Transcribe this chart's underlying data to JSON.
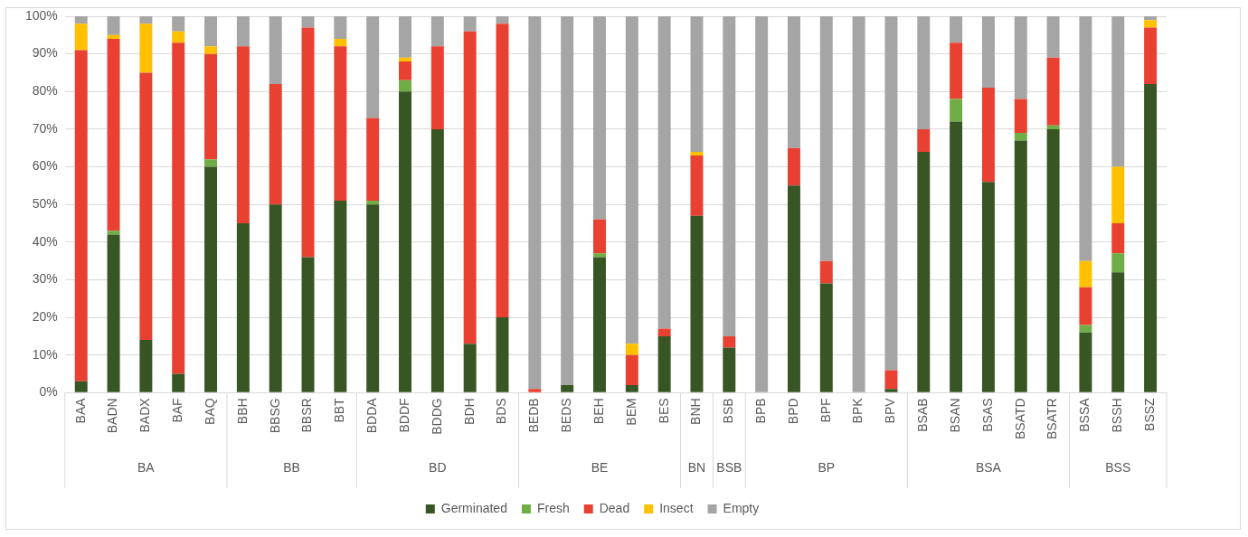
{
  "chart_data": {
    "type": "bar",
    "stacked": true,
    "categories": [
      "BAA",
      "BADN",
      "BADX",
      "BAF",
      "BAQ",
      "BBH",
      "BBSG",
      "BBSR",
      "BBT",
      "BDDA",
      "BDDF",
      "BDDG",
      "BDH",
      "BDS",
      "BEDB",
      "BEDS",
      "BEH",
      "BEM",
      "BES",
      "BNH",
      "BSB",
      "BPB",
      "BPD",
      "BPF",
      "BPK",
      "BPV",
      "BSAB",
      "BSAN",
      "BSAS",
      "BSATD",
      "BSATR",
      "BSSA",
      "BSSH",
      "BSSZ"
    ],
    "series": [
      {
        "name": "Germinated",
        "color": "#375623",
        "values": [
          3,
          42,
          14,
          5,
          60,
          45,
          50,
          36,
          51,
          50,
          80,
          70,
          13,
          20,
          0,
          2,
          36,
          2,
          15,
          47,
          12,
          0,
          55,
          29,
          0,
          1,
          64,
          72,
          56,
          67,
          70,
          16,
          32,
          82
        ]
      },
      {
        "name": "Fresh",
        "color": "#70ad47",
        "values": [
          0,
          1,
          0,
          0,
          2,
          0,
          0,
          0,
          0,
          1,
          3,
          0,
          0,
          0,
          0,
          0,
          1,
          0,
          0,
          0,
          0,
          0,
          0,
          0,
          0,
          0,
          0,
          6,
          0,
          2,
          1,
          2,
          5,
          0
        ]
      },
      {
        "name": "Dead",
        "color": "#e84132",
        "values": [
          88,
          51,
          71,
          88,
          28,
          47,
          32,
          61,
          41,
          22,
          5,
          22,
          83,
          78,
          1,
          0,
          9,
          8,
          2,
          16,
          3,
          0,
          10,
          6,
          0,
          5,
          6,
          15,
          25,
          9,
          18,
          10,
          8,
          15
        ]
      },
      {
        "name": "Insect",
        "color": "#ffc000",
        "values": [
          7,
          1,
          13,
          3,
          2,
          0,
          0,
          0,
          2,
          0,
          1,
          0,
          0,
          0,
          0,
          0,
          0,
          3,
          0,
          1,
          0,
          0,
          0,
          0,
          0,
          0,
          0,
          0,
          0,
          0,
          0,
          7,
          15,
          2
        ]
      },
      {
        "name": "Empty",
        "color": "#a5a5a5",
        "values": [
          2,
          5,
          2,
          4,
          8,
          8,
          18,
          3,
          6,
          27,
          11,
          8,
          4,
          2,
          99,
          98,
          54,
          87,
          83,
          36,
          85,
          100,
          35,
          65,
          100,
          94,
          30,
          7,
          19,
          22,
          11,
          65,
          40,
          1
        ]
      }
    ],
    "ylim": [
      0,
      100
    ],
    "yticks": [
      {
        "value": 0,
        "label": "0%"
      },
      {
        "value": 10,
        "label": "10%"
      },
      {
        "value": 20,
        "label": "20%"
      },
      {
        "value": 30,
        "label": "30%"
      },
      {
        "value": 40,
        "label": "40%"
      },
      {
        "value": 50,
        "label": "50%"
      },
      {
        "value": 60,
        "label": "60%"
      },
      {
        "value": 70,
        "label": "70%"
      },
      {
        "value": 80,
        "label": "80%"
      },
      {
        "value": 90,
        "label": "90%"
      },
      {
        "value": 100,
        "label": "100%"
      }
    ],
    "grid": "y",
    "legend": "bottom",
    "annotations": [
      "BA",
      "BB",
      "BD",
      "BE",
      "BN",
      "BSB",
      "BP",
      "BSA",
      "BSS"
    ]
  }
}
